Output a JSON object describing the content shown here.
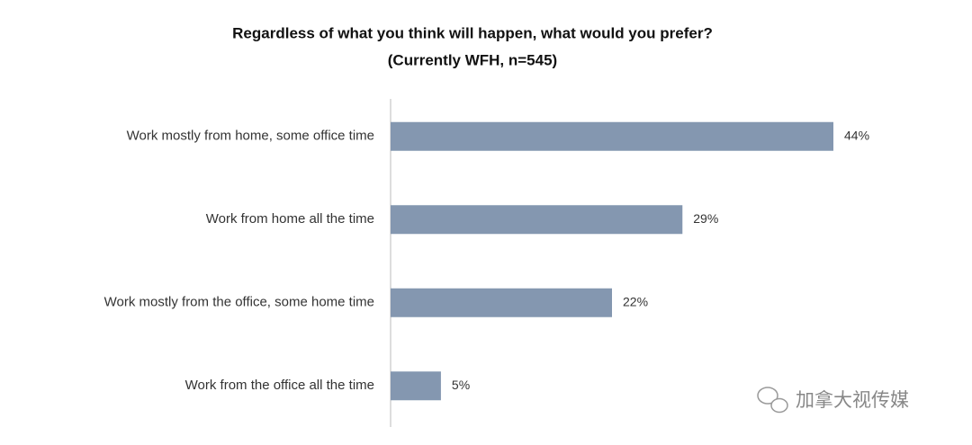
{
  "chart_data": {
    "type": "barh",
    "title": "Regardless of what you think will happen, what would you prefer?",
    "subtitle": "(Currently WFH, n=545)",
    "categories": [
      "Work mostly from home, some office time",
      "Work from home all the time",
      "Work mostly from the office, some home time",
      "Work from the office all the time"
    ],
    "values": [
      44,
      29,
      22,
      5
    ],
    "value_labels": [
      "44%",
      "29%",
      "22%",
      "5%"
    ],
    "color": "#8497b0"
  },
  "watermark": "加拿大视传媒"
}
